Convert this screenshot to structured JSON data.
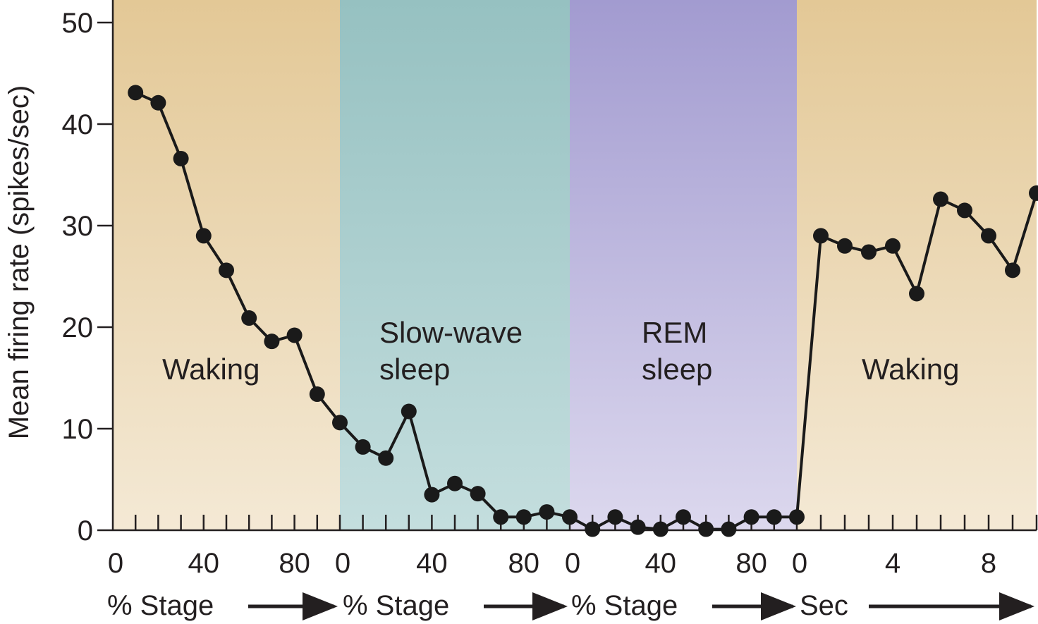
{
  "chart_data": {
    "type": "line",
    "title": "",
    "ylabel": "Mean firing rate (spikes/sec)",
    "ylim": [
      0,
      50
    ],
    "yticks": [
      0,
      10,
      20,
      30,
      40,
      50
    ],
    "grid": false,
    "legend": "none",
    "colors": {
      "waking": "#e3c896",
      "slow_wave": "#96c1c1",
      "rem": "#a29bd0",
      "line": "#1a1a1a"
    },
    "panels": [
      {
        "key": "waking_1",
        "region_label": [
          "Waking"
        ],
        "xlabel": "% Stage",
        "xlim": [
          0,
          100
        ],
        "xticks": [
          0,
          40,
          80
        ],
        "x": [
          10,
          20,
          30,
          40,
          50,
          60,
          70,
          80,
          90,
          100
        ],
        "y": [
          43.1,
          42.1,
          36.6,
          29.0,
          25.6,
          20.9,
          18.6,
          19.2,
          13.4,
          10.6
        ]
      },
      {
        "key": "slow_wave",
        "region_label": [
          "Slow-wave",
          "sleep"
        ],
        "xlabel": "% Stage",
        "xlim": [
          0,
          100
        ],
        "xticks": [
          0,
          40,
          80
        ],
        "x": [
          10,
          20,
          30,
          40,
          50,
          60,
          70,
          80,
          90,
          100
        ],
        "y": [
          8.2,
          7.1,
          11.7,
          3.5,
          4.6,
          3.6,
          1.3,
          1.3,
          1.8,
          1.3
        ]
      },
      {
        "key": "rem",
        "region_label": [
          "REM",
          "sleep"
        ],
        "xlabel": "% Stage",
        "xlim": [
          0,
          100
        ],
        "xticks": [
          0,
          40,
          80
        ],
        "x": [
          10,
          20,
          30,
          40,
          50,
          60,
          70,
          80,
          90,
          100
        ],
        "y": [
          0.1,
          1.3,
          0.3,
          0.1,
          1.3,
          0.1,
          0.1,
          1.3,
          1.3,
          1.3
        ]
      },
      {
        "key": "waking_2",
        "region_label": [
          "Waking"
        ],
        "xlabel": "Sec",
        "xlim": [
          0,
          10
        ],
        "xticks": [
          0,
          4,
          8
        ],
        "x": [
          1,
          2,
          3,
          4,
          5,
          6,
          7,
          8,
          9,
          10
        ],
        "y": [
          29.0,
          28.0,
          27.4,
          28.0,
          23.3,
          32.6,
          31.5,
          29.0,
          25.6,
          33.2
        ]
      }
    ]
  }
}
